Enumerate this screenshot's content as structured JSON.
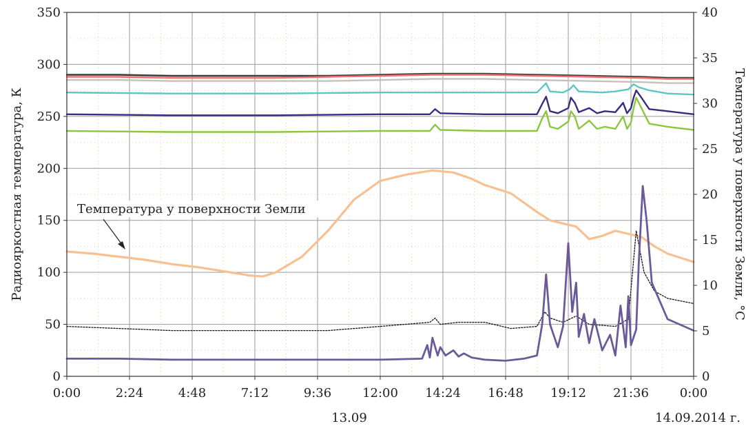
{
  "chart_data": {
    "type": "line",
    "xlabel": "",
    "ylabel_left": "Радиояркостная температура, К",
    "ylabel_right": "Температура у поверхности Земли, °С",
    "x_tick_labels": [
      "0:00",
      "2:24",
      "4:48",
      "7:12",
      "9:36",
      "12:00",
      "14:24",
      "16:48",
      "19:12",
      "21:36",
      "0:00"
    ],
    "x_range_hours": [
      0,
      24
    ],
    "ylim_left": [
      0,
      350
    ],
    "y_ticks_left": [
      "0",
      "50",
      "100",
      "150",
      "200",
      "250",
      "300",
      "350"
    ],
    "ylim_right": [
      0,
      40
    ],
    "y_ticks_right": [
      "0",
      "5",
      "10",
      "15",
      "20",
      "25",
      "30",
      "35",
      "40"
    ],
    "date_labels": [
      "13.09",
      "14.09.2014 г."
    ],
    "annotation": "Температура у поверхности Земли",
    "grid": true,
    "series": [
      {
        "axis": "left",
        "color": "#3a3a3a",
        "x": [
          0,
          2,
          4,
          6,
          8,
          10,
          12,
          14,
          15,
          16,
          18,
          20,
          22,
          23,
          24
        ],
        "y": [
          290,
          290,
          289,
          289,
          289,
          289,
          290,
          291,
          291,
          291,
          290,
          289,
          288,
          287,
          287
        ]
      },
      {
        "axis": "left",
        "color": "#f07070",
        "x": [
          0,
          2,
          4,
          6,
          8,
          10,
          12,
          14,
          15,
          16,
          18,
          20,
          22,
          23,
          24
        ],
        "y": [
          288,
          288,
          287,
          287,
          287,
          288,
          289,
          290,
          290,
          290,
          289,
          288,
          287,
          286,
          286
        ]
      },
      {
        "axis": "left",
        "color": "#c8c0b8",
        "x": [
          0,
          2,
          4,
          6,
          8,
          10,
          12,
          14,
          15,
          16,
          18,
          20,
          22,
          23,
          24
        ],
        "y": [
          285,
          285,
          284,
          284,
          284,
          284,
          285,
          286,
          286,
          286,
          285,
          284,
          283,
          282,
          282
        ]
      },
      {
        "axis": "left",
        "color": "#5fc4c4",
        "x": [
          0,
          4,
          8,
          12,
          14,
          18,
          18.2,
          18.35,
          18.5,
          19,
          19.25,
          19.4,
          19.6,
          20.5,
          21,
          21.5,
          21.7,
          21.9,
          22.3,
          23,
          24
        ],
        "y": [
          273,
          272,
          272,
          273,
          273,
          273,
          278,
          282,
          274,
          273,
          276,
          280,
          274,
          273,
          274,
          276,
          281,
          278,
          275,
          272,
          271
        ]
      },
      {
        "axis": "left",
        "color": "#3a2a80",
        "x": [
          0,
          4,
          8,
          12,
          13.9,
          14.1,
          14.3,
          16,
          18,
          18.2,
          18.35,
          18.5,
          18.8,
          19.2,
          19.3,
          19.45,
          19.6,
          20,
          20.3,
          20.6,
          21,
          21.3,
          21.45,
          21.6,
          21.7,
          21.8,
          22,
          22.3,
          23,
          24
        ],
        "y": [
          252,
          251,
          251,
          252,
          252,
          257,
          253,
          252,
          252,
          262,
          269,
          255,
          253,
          258,
          268,
          263,
          254,
          258,
          253,
          255,
          254,
          263,
          253,
          258,
          268,
          275,
          268,
          257,
          255,
          252
        ]
      },
      {
        "axis": "left",
        "color": "#8cc63f",
        "x": [
          0,
          4,
          8,
          12,
          13.9,
          14.1,
          14.3,
          16,
          18,
          18.2,
          18.35,
          18.5,
          18.8,
          19.2,
          19.3,
          19.45,
          19.6,
          20,
          20.3,
          20.6,
          21,
          21.3,
          21.45,
          21.6,
          21.7,
          21.8,
          22,
          22.3,
          23,
          24
        ],
        "y": [
          236,
          235,
          235,
          236,
          236,
          242,
          237,
          236,
          236,
          248,
          255,
          240,
          238,
          245,
          255,
          250,
          238,
          246,
          238,
          240,
          238,
          250,
          238,
          244,
          258,
          268,
          258,
          243,
          240,
          237
        ]
      },
      {
        "axis": "left",
        "color": "#f8c090",
        "width": 3.2,
        "x": [
          0,
          1,
          2,
          3,
          4,
          5,
          6,
          7,
          7.5,
          8,
          9,
          10,
          11,
          12,
          13,
          14,
          14.8,
          15.5,
          16,
          17,
          18,
          18.5,
          19.5,
          20,
          20.5,
          21,
          22,
          22.5,
          23,
          24
        ],
        "y": [
          120,
          118,
          115,
          112,
          108,
          105,
          101,
          97,
          96,
          100,
          115,
          140,
          170,
          188,
          194,
          198,
          196,
          190,
          184,
          176,
          158,
          150,
          144,
          132,
          135,
          140,
          134,
          125,
          118,
          110
        ]
      },
      {
        "axis": "left",
        "color": "#111111",
        "width": 1.3,
        "dash": "2,2",
        "x": [
          0,
          2,
          4,
          6,
          8,
          10,
          12,
          13.9,
          14.1,
          14.3,
          15,
          16,
          17,
          18,
          18.3,
          18.5,
          19,
          19.5,
          20,
          21,
          21.5,
          21.8,
          22.1,
          22.5,
          23,
          24
        ],
        "y": [
          48,
          46,
          44,
          44,
          44,
          44,
          48,
          52,
          56,
          50,
          52,
          52,
          46,
          48,
          62,
          56,
          52,
          58,
          50,
          48,
          55,
          140,
          100,
          82,
          75,
          70
        ]
      },
      {
        "axis": "left",
        "color": "#6a5a9a",
        "width": 2.8,
        "x": [
          0,
          2,
          4,
          6,
          8,
          10,
          12,
          13.6,
          13.8,
          13.9,
          14.0,
          14.2,
          14.3,
          14.5,
          14.8,
          15.0,
          15.2,
          15.5,
          16,
          16.8,
          17.5,
          18,
          18.2,
          18.35,
          18.5,
          18.8,
          19.0,
          19.2,
          19.35,
          19.5,
          19.6,
          19.8,
          20,
          20.2,
          20.5,
          20.8,
          21,
          21.2,
          21.4,
          21.5,
          21.6,
          21.8,
          21.9,
          22.05,
          22.2,
          22.4,
          23,
          24
        ],
        "y": [
          17,
          17,
          16,
          16,
          16,
          16,
          16,
          17,
          30,
          18,
          37,
          20,
          28,
          20,
          25,
          19,
          22,
          18,
          16,
          15,
          17,
          20,
          50,
          98,
          50,
          28,
          48,
          128,
          62,
          90,
          38,
          60,
          32,
          55,
          25,
          40,
          20,
          68,
          28,
          77,
          30,
          45,
          110,
          183,
          150,
          90,
          55,
          44
        ]
      }
    ]
  }
}
